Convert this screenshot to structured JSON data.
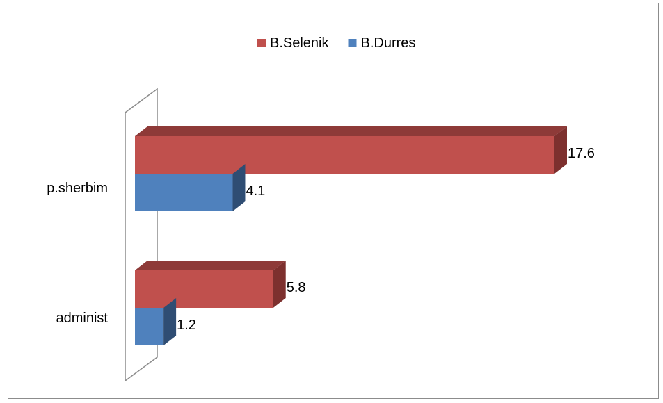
{
  "chart_data": {
    "type": "bar",
    "orientation": "horizontal",
    "style": "3d",
    "categories": [
      "p.sherbim",
      "administ"
    ],
    "series": [
      {
        "name": "B.Selenik",
        "values": [
          17.6,
          5.8
        ],
        "color": "#c0504d",
        "top_color": "#8e3a38",
        "side_color": "#7d302e"
      },
      {
        "name": "B.Durres",
        "values": [
          4.1,
          1.2
        ],
        "color": "#4f81bd",
        "top_color": "#3a5f8c",
        "side_color": "#2f4d73"
      }
    ],
    "xlim": [
      0,
      17.6
    ],
    "legend_position": "top",
    "grid": false,
    "data_labels": true,
    "title": "",
    "xlabel": "",
    "ylabel": ""
  }
}
